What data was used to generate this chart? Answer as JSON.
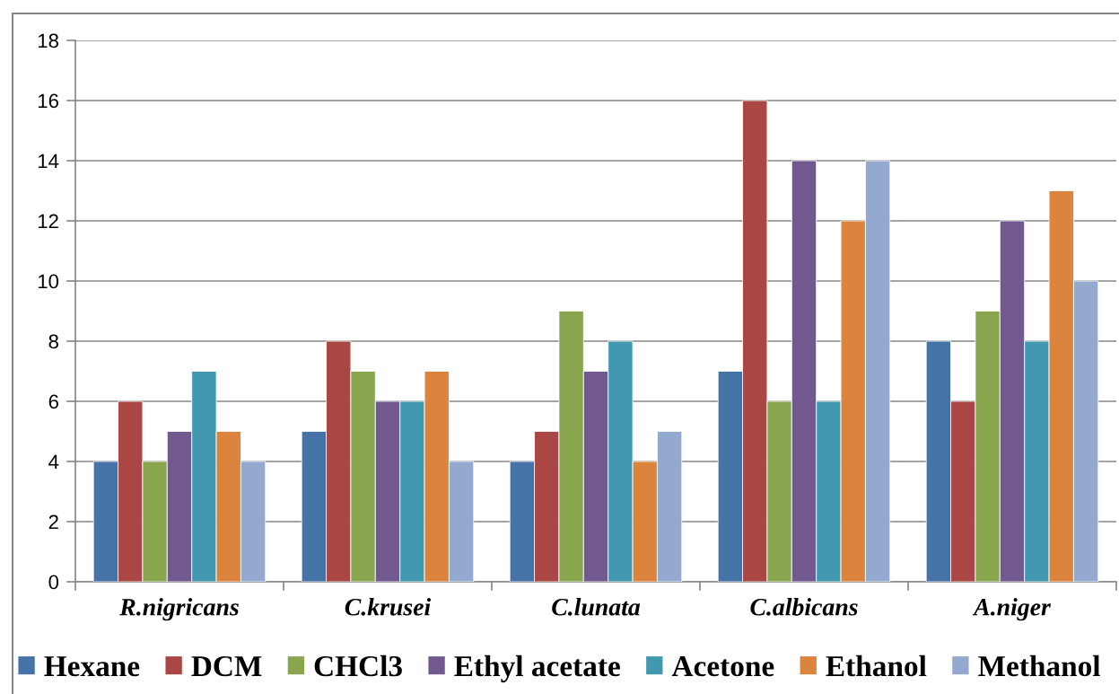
{
  "chart_data": {
    "type": "bar",
    "categories": [
      "R.nigricans",
      "C.krusei",
      "C.lunata",
      "C.albicans",
      "A.niger"
    ],
    "series": [
      {
        "name": "Hexane",
        "color": "#4572a7",
        "values": [
          4,
          5,
          4,
          7,
          8
        ]
      },
      {
        "name": "DCM",
        "color": "#aa4643",
        "values": [
          6,
          8,
          5,
          16,
          6
        ]
      },
      {
        "name": "CHCl3",
        "color": "#89a54e",
        "values": [
          4,
          7,
          9,
          6,
          9
        ]
      },
      {
        "name": "Ethyl acetate",
        "color": "#71588f",
        "values": [
          5,
          6,
          7,
          14,
          12
        ]
      },
      {
        "name": "Acetone",
        "color": "#4198af",
        "values": [
          7,
          6,
          8,
          6,
          8
        ]
      },
      {
        "name": "Ethanol",
        "color": "#db843d",
        "values": [
          5,
          7,
          4,
          12,
          13
        ]
      },
      {
        "name": "Methanol",
        "color": "#93a9cf",
        "values": [
          4,
          4,
          5,
          14,
          10
        ]
      }
    ],
    "ylim": [
      0,
      18
    ],
    "yticks": [
      0,
      2,
      4,
      6,
      8,
      10,
      12,
      14,
      16,
      18
    ],
    "grid": "y",
    "legend": "bottom"
  }
}
